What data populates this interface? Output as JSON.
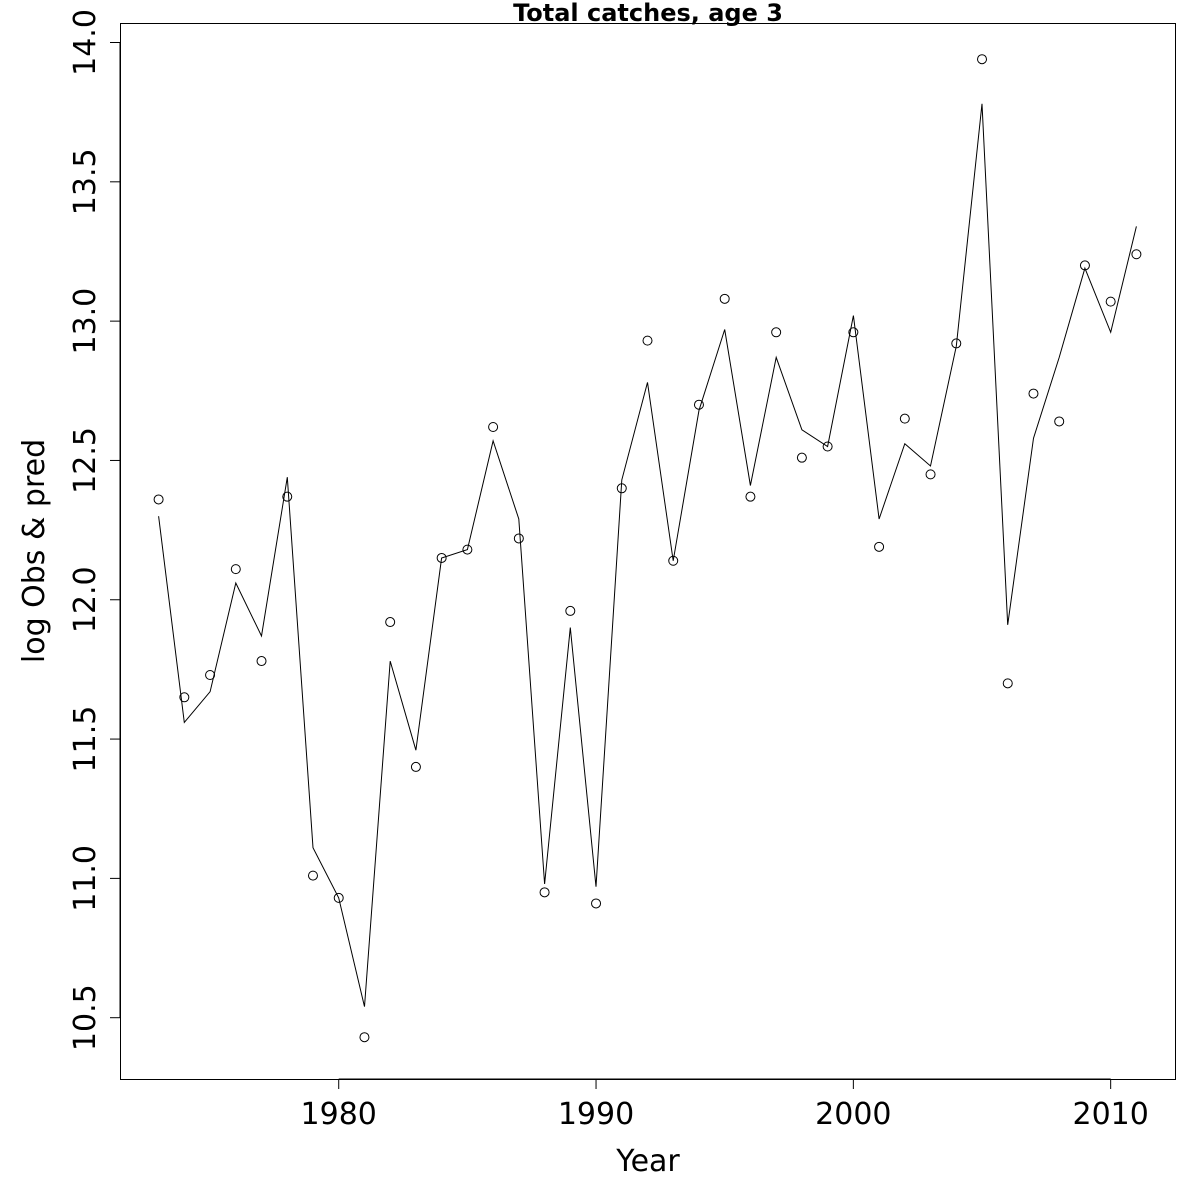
{
  "chart_data": {
    "type": "line",
    "title": "Total catches, age 3",
    "xlabel": "Year",
    "ylabel": "log Obs & pred",
    "xlim": [
      1971.5,
      2012.5
    ],
    "ylim": [
      10.28,
      14.07
    ],
    "xticks": [
      1980,
      1990,
      2000,
      2010
    ],
    "yticks": [
      10.5,
      11.0,
      11.5,
      12.0,
      12.5,
      13.0,
      13.5,
      14.0
    ],
    "xtick_labels": [
      "1980",
      "1990",
      "2000",
      "2010"
    ],
    "ytick_labels": [
      "10.5",
      "11.0",
      "11.5",
      "12.0",
      "12.5",
      "13.0",
      "13.5",
      "14.0"
    ],
    "grid": false,
    "x": [
      1973,
      1974,
      1975,
      1976,
      1977,
      1978,
      1979,
      1980,
      1981,
      1982,
      1983,
      1984,
      1985,
      1986,
      1987,
      1988,
      1989,
      1990,
      1991,
      1992,
      1993,
      1994,
      1995,
      1996,
      1997,
      1998,
      1999,
      2000,
      2001,
      2002,
      2003,
      2004,
      2005,
      2006,
      2007,
      2008,
      2009,
      2010,
      2011
    ],
    "series": [
      {
        "role": "observed",
        "marker": "open-circle",
        "values": [
          12.36,
          11.65,
          11.73,
          12.11,
          11.78,
          12.37,
          11.01,
          10.93,
          10.43,
          11.92,
          11.4,
          12.15,
          12.18,
          12.62,
          12.22,
          10.95,
          11.96,
          10.91,
          12.4,
          12.93,
          12.14,
          12.7,
          13.08,
          12.37,
          12.96,
          12.51,
          12.55,
          12.96,
          12.19,
          12.65,
          12.45,
          12.92,
          13.94,
          11.7,
          12.74,
          12.64,
          13.2,
          13.07,
          13.24
        ]
      },
      {
        "role": "predicted",
        "marker": "line",
        "values": [
          12.3,
          11.56,
          11.67,
          12.06,
          11.87,
          12.44,
          11.11,
          10.93,
          10.54,
          11.78,
          11.46,
          12.15,
          12.18,
          12.57,
          12.29,
          10.98,
          11.9,
          10.97,
          12.43,
          12.78,
          12.14,
          12.68,
          12.97,
          12.41,
          12.87,
          12.61,
          12.55,
          13.02,
          12.29,
          12.56,
          12.48,
          12.91,
          13.78,
          11.91,
          12.58,
          12.87,
          13.19,
          12.96,
          13.34
        ]
      }
    ]
  }
}
